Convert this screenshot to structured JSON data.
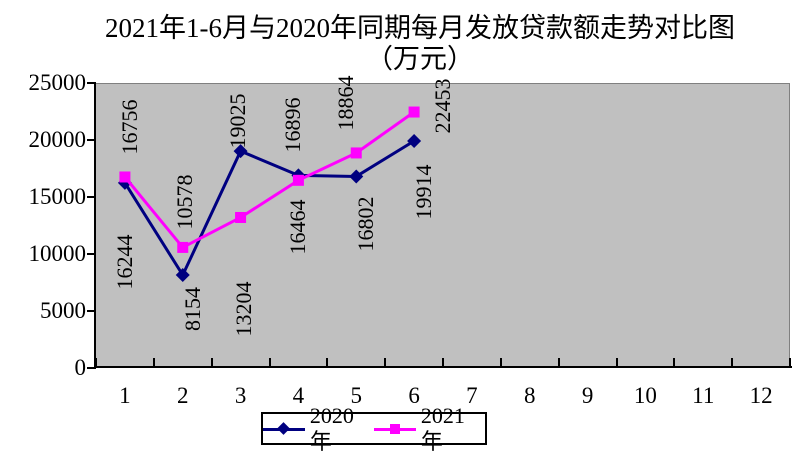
{
  "chart_data": {
    "type": "line",
    "title": "2021年1-6月与2020年同期每月发放贷款额走势对比图",
    "subtitle": "（万元）",
    "categories": [
      "1",
      "2",
      "3",
      "4",
      "5",
      "6",
      "7",
      "8",
      "9",
      "10",
      "11",
      "12"
    ],
    "series": [
      {
        "name": "2020年",
        "color": "#000080",
        "marker": "diamond",
        "values": [
          16244,
          8154,
          19025,
          16896,
          16802,
          19914
        ]
      },
      {
        "name": "2021年",
        "color": "#FF00FF",
        "marker": "square",
        "values": [
          16756,
          10578,
          13204,
          16464,
          18864,
          22453
        ]
      }
    ],
    "ylim": [
      0,
      25000
    ],
    "ytick_step": 5000,
    "yticks": [
      "0",
      "5000",
      "10000",
      "15000",
      "20000",
      "25000"
    ],
    "plot_bg": "#C0C0C0",
    "axis_color": "#000000",
    "grid": false,
    "legend_position": "bottom",
    "data_labels_rotated": true
  }
}
